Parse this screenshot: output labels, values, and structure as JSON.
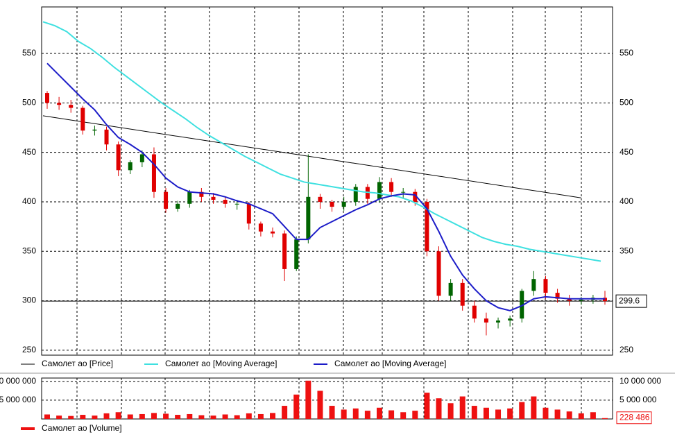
{
  "chart_data": [
    {
      "type": "candlestick",
      "price_name": "Самолет ао [Price]",
      "up_color": "#006400",
      "down_color": "#e00000",
      "open": [
        510,
        500,
        498,
        495,
        472,
        473,
        458,
        432,
        440,
        448,
        410,
        393,
        398,
        410,
        405,
        402,
        398,
        398,
        378,
        370,
        368,
        332,
        362,
        405,
        400,
        395,
        400,
        415,
        403,
        420,
        410,
        410,
        400,
        350,
        305,
        318,
        295,
        282,
        278,
        280,
        282,
        310,
        322,
        308,
        302,
        300,
        301,
        303
      ],
      "high": [
        512,
        506,
        503,
        497,
        477,
        476,
        461,
        442,
        452,
        455,
        414,
        401,
        412,
        414,
        409,
        405,
        402,
        400,
        380,
        374,
        371,
        365,
        448,
        408,
        402,
        405,
        418,
        418,
        425,
        424,
        414,
        413,
        403,
        355,
        322,
        322,
        300,
        288,
        283,
        285,
        312,
        330,
        325,
        312,
        306,
        304,
        306,
        310
      ],
      "low": [
        494,
        493,
        490,
        468,
        467,
        452,
        426,
        428,
        435,
        404,
        389,
        390,
        394,
        400,
        398,
        394,
        392,
        372,
        365,
        364,
        320,
        330,
        358,
        393,
        390,
        391,
        396,
        398,
        399,
        405,
        404,
        396,
        345,
        300,
        300,
        290,
        278,
        265,
        272,
        274,
        278,
        305,
        302,
        298,
        295,
        296,
        297,
        296
      ],
      "close": [
        500,
        498,
        495,
        472,
        473,
        458,
        432,
        440,
        448,
        410,
        393,
        398,
        410,
        405,
        402,
        398,
        398,
        378,
        370,
        368,
        332,
        362,
        405,
        400,
        395,
        400,
        415,
        403,
        420,
        410,
        410,
        400,
        350,
        305,
        318,
        295,
        282,
        278,
        280,
        282,
        310,
        322,
        308,
        302,
        300,
        301,
        303,
        299.6
      ],
      "series": [
        {
          "name": "Самолет ао [Moving Average]",
          "color": "#3fe0e0",
          "values": [
            582,
            578,
            572,
            562,
            555,
            546,
            536,
            527,
            518,
            509,
            500,
            492,
            484,
            475,
            467,
            460,
            453,
            446,
            440,
            434,
            428,
            424,
            420,
            418,
            416,
            414,
            412,
            410,
            409,
            407,
            405,
            401,
            395,
            388,
            382,
            376,
            370,
            364,
            360,
            357,
            355,
            352,
            350,
            348,
            346,
            344,
            342,
            340
          ]
        },
        {
          "name": "Самолет ао [Moving Average]",
          "color": "#1c1cc8",
          "values": [
            540,
            528,
            516,
            504,
            493,
            478,
            465,
            458,
            450,
            438,
            424,
            415,
            410,
            409,
            408,
            405,
            401,
            398,
            393,
            388,
            375,
            362,
            362,
            374,
            380,
            386,
            392,
            397,
            403,
            406,
            408,
            407,
            393,
            370,
            345,
            326,
            312,
            300,
            293,
            290,
            295,
            302,
            304,
            303,
            302,
            302,
            302,
            302
          ]
        }
      ],
      "trendline": {
        "x": [
          0,
          45
        ],
        "values": [
          487,
          404
        ]
      },
      "current_price": 299.6,
      "ylim": [
        245,
        597
      ],
      "yticks": [
        250,
        300,
        350,
        400,
        450,
        500,
        550
      ],
      "grid": true
    },
    {
      "type": "bar",
      "name": "Самолет ао [Volume]",
      "color": "#ee1111",
      "values": [
        1200000,
        900000,
        800000,
        1100000,
        900000,
        1500000,
        1800000,
        1200000,
        1300000,
        1600000,
        1400000,
        1100000,
        1300000,
        1000000,
        900000,
        1200000,
        1000000,
        1500000,
        1300000,
        1600000,
        3500000,
        6500000,
        10200000,
        7500000,
        3500000,
        2500000,
        2800000,
        2200000,
        3000000,
        2300000,
        1800000,
        2200000,
        7000000,
        5500000,
        4200000,
        6000000,
        3500000,
        3000000,
        2500000,
        2800000,
        4500000,
        6000000,
        3000000,
        2500000,
        2000000,
        1500000,
        1800000,
        228486
      ],
      "current_volume": {
        "value": 228486,
        "label": "228 486"
      },
      "ylim": [
        0,
        10900000
      ],
      "yticks": [
        {
          "value": 5000000,
          "label": "5 000 000"
        },
        {
          "value": 10000000,
          "label": "10 000 000"
        }
      ],
      "grid": true
    }
  ]
}
